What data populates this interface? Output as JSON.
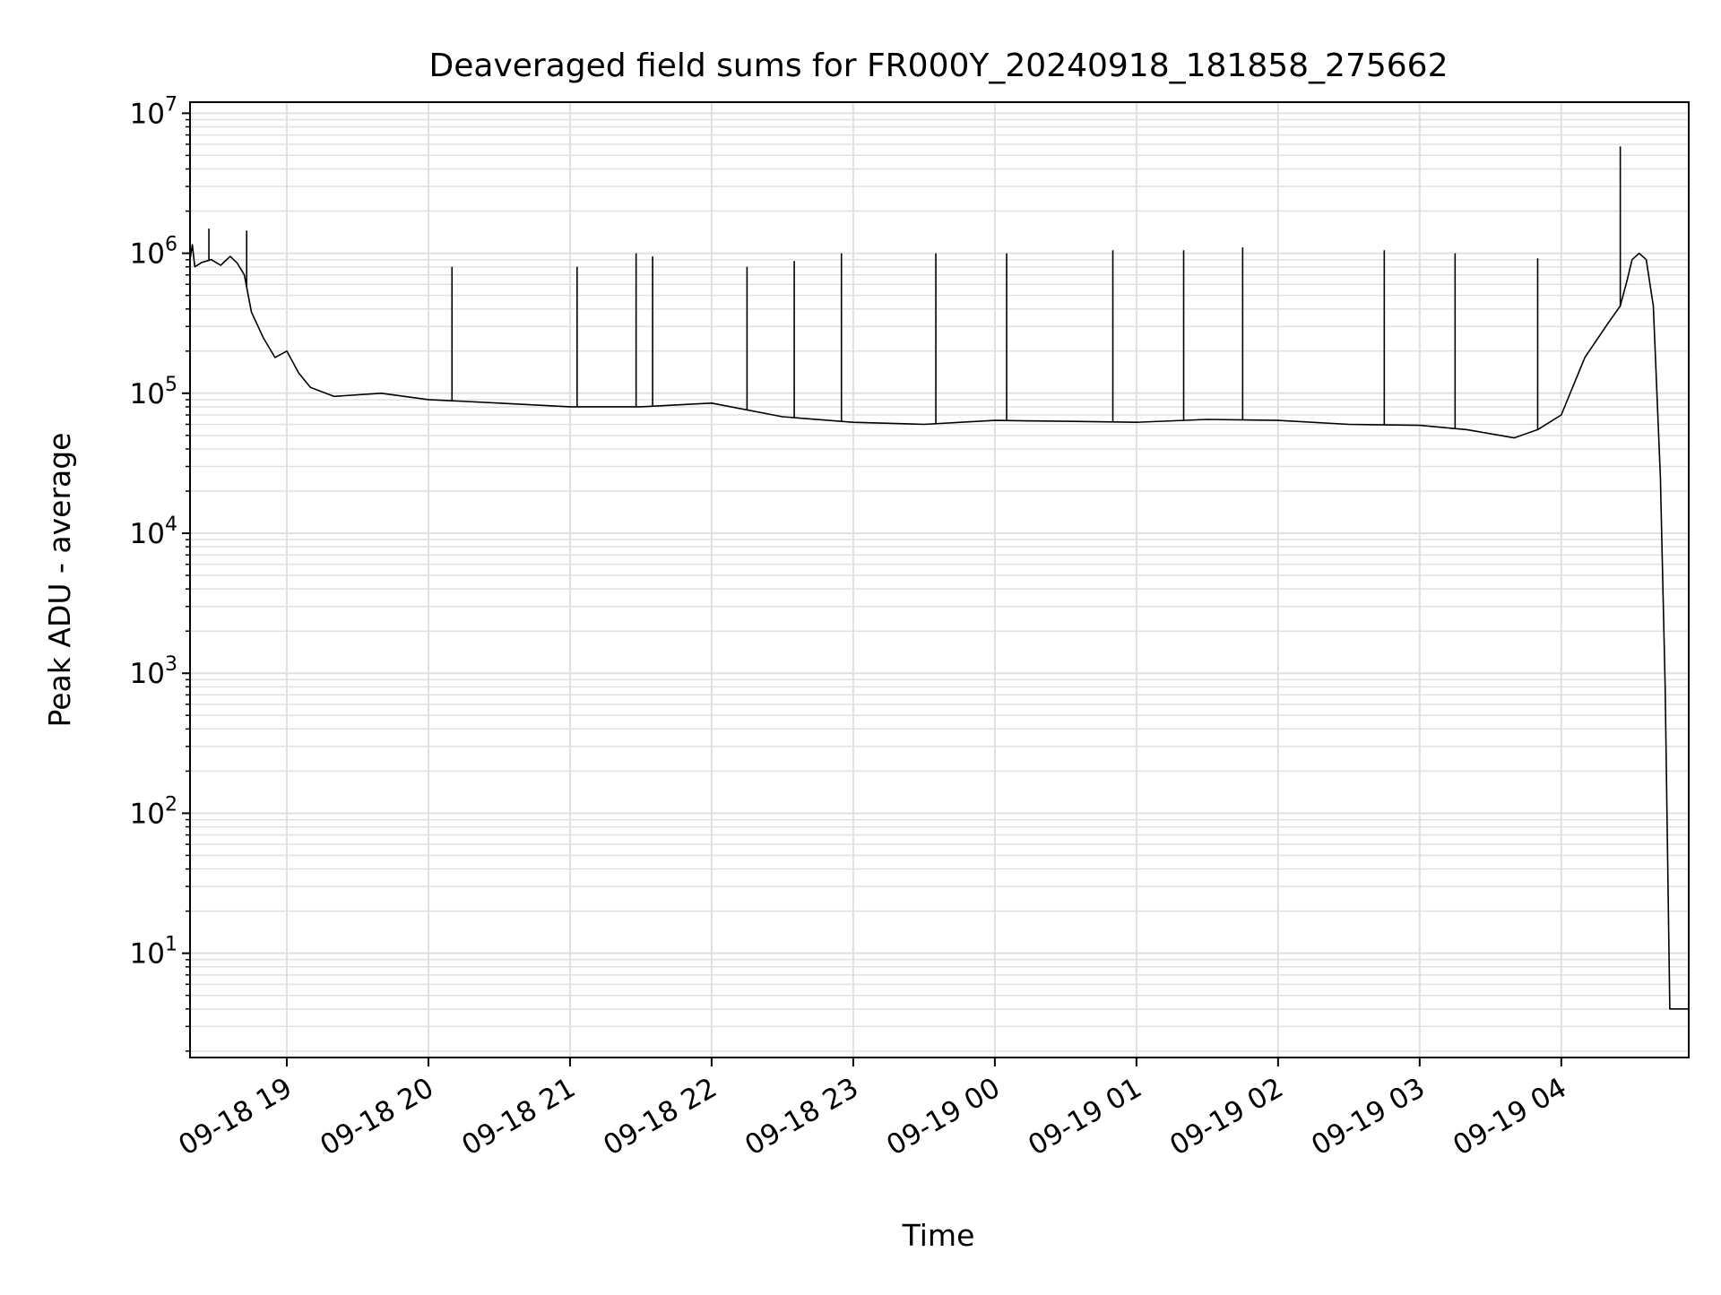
{
  "chart_data": {
    "type": "line",
    "title": "Deaveraged field sums for FR000Y_20240918_181858_275662",
    "xlabel": "Time",
    "ylabel": "Peak ADU - average",
    "x_range": [
      "09-18 18:19",
      "09-19 04:54"
    ],
    "yscale": "log",
    "ylim": [
      1.8,
      12000000
    ],
    "y_ticks": [
      {
        "value": 10,
        "base": "10",
        "exp": "1"
      },
      {
        "value": 100,
        "base": "10",
        "exp": "2"
      },
      {
        "value": 1000,
        "base": "10",
        "exp": "3"
      },
      {
        "value": 10000,
        "base": "10",
        "exp": "4"
      },
      {
        "value": 100000,
        "base": "10",
        "exp": "5"
      },
      {
        "value": 1000000,
        "base": "10",
        "exp": "6"
      },
      {
        "value": 10000000,
        "base": "10",
        "exp": "7"
      }
    ],
    "x_ticks": [
      {
        "time": "09-18 19:00",
        "label": "09-18 19"
      },
      {
        "time": "09-18 20:00",
        "label": "09-18 20"
      },
      {
        "time": "09-18 21:00",
        "label": "09-18 21"
      },
      {
        "time": "09-18 22:00",
        "label": "09-18 22"
      },
      {
        "time": "09-18 23:00",
        "label": "09-18 23"
      },
      {
        "time": "09-19 00:00",
        "label": "09-19 00"
      },
      {
        "time": "09-19 01:00",
        "label": "09-19 01"
      },
      {
        "time": "09-19 02:00",
        "label": "09-19 02"
      },
      {
        "time": "09-19 03:00",
        "label": "09-19 03"
      },
      {
        "time": "09-19 04:00",
        "label": "09-19 04"
      }
    ],
    "grid": true,
    "line_color": "#000000",
    "grid_color": "#e0e0e0",
    "series": [
      {
        "x": [
          "09-18 18:19",
          "09-18 18:20",
          "09-18 18:21",
          "09-18 18:24",
          "09-18 18:28",
          "09-18 18:32",
          "09-18 18:36",
          "09-18 18:39",
          "09-18 18:42",
          "09-18 18:45",
          "09-18 18:50",
          "09-18 18:55",
          "09-18 19:00",
          "09-18 19:05",
          "09-18 19:10",
          "09-18 19:20",
          "09-18 19:40",
          "09-18 20:00",
          "09-18 20:30",
          "09-18 21:00",
          "09-18 21:30",
          "09-18 22:00",
          "09-18 22:30",
          "09-18 23:00",
          "09-18 23:30",
          "09-19 00:00",
          "09-19 00:30",
          "09-19 01:00",
          "09-19 01:30",
          "09-19 02:00",
          "09-19 02:30",
          "09-19 03:00",
          "09-19 03:20",
          "09-19 03:40",
          "09-19 03:50",
          "09-19 04:00",
          "09-19 04:10",
          "09-19 04:20",
          "09-19 04:25",
          "09-19 04:28",
          "09-19 04:30",
          "09-19 04:33",
          "09-19 04:36",
          "09-19 04:39",
          "09-19 04:42",
          "09-19 04:44",
          "09-19 04:46",
          "09-19 04:48",
          "09-19 04:50",
          "09-19 04:54"
        ],
        "y": [
          900000,
          1150000,
          800000,
          860000,
          900000,
          820000,
          950000,
          850000,
          700000,
          380000,
          250000,
          180000,
          200000,
          140000,
          110000,
          95000,
          100000,
          90000,
          85000,
          80000,
          80000,
          85000,
          68000,
          62000,
          60000,
          64000,
          63000,
          62000,
          65000,
          64000,
          60000,
          59000,
          55000,
          48000,
          55000,
          70000,
          180000,
          320000,
          420000,
          650000,
          900000,
          1000000,
          900000,
          420000,
          25000,
          800,
          4,
          4,
          4,
          4
        ]
      }
    ],
    "spikes": [
      {
        "x": "09-18 18:27",
        "y": 1500000
      },
      {
        "x": "09-18 18:43",
        "y": 1450000
      },
      {
        "x": "09-18 20:10",
        "y": 800000
      },
      {
        "x": "09-18 21:03",
        "y": 800000
      },
      {
        "x": "09-18 21:28",
        "y": 1000000
      },
      {
        "x": "09-18 21:35",
        "y": 950000
      },
      {
        "x": "09-18 22:15",
        "y": 800000
      },
      {
        "x": "09-18 22:35",
        "y": 880000
      },
      {
        "x": "09-18 22:55",
        "y": 1000000
      },
      {
        "x": "09-18 23:35",
        "y": 1000000
      },
      {
        "x": "09-19 00:05",
        "y": 1000000
      },
      {
        "x": "09-19 00:50",
        "y": 1050000
      },
      {
        "x": "09-19 01:20",
        "y": 1050000
      },
      {
        "x": "09-19 01:45",
        "y": 1100000
      },
      {
        "x": "09-19 02:45",
        "y": 1050000
      },
      {
        "x": "09-19 03:15",
        "y": 1000000
      },
      {
        "x": "09-19 03:50",
        "y": 920000
      },
      {
        "x": "09-19 04:25",
        "y": 5800000
      }
    ]
  }
}
